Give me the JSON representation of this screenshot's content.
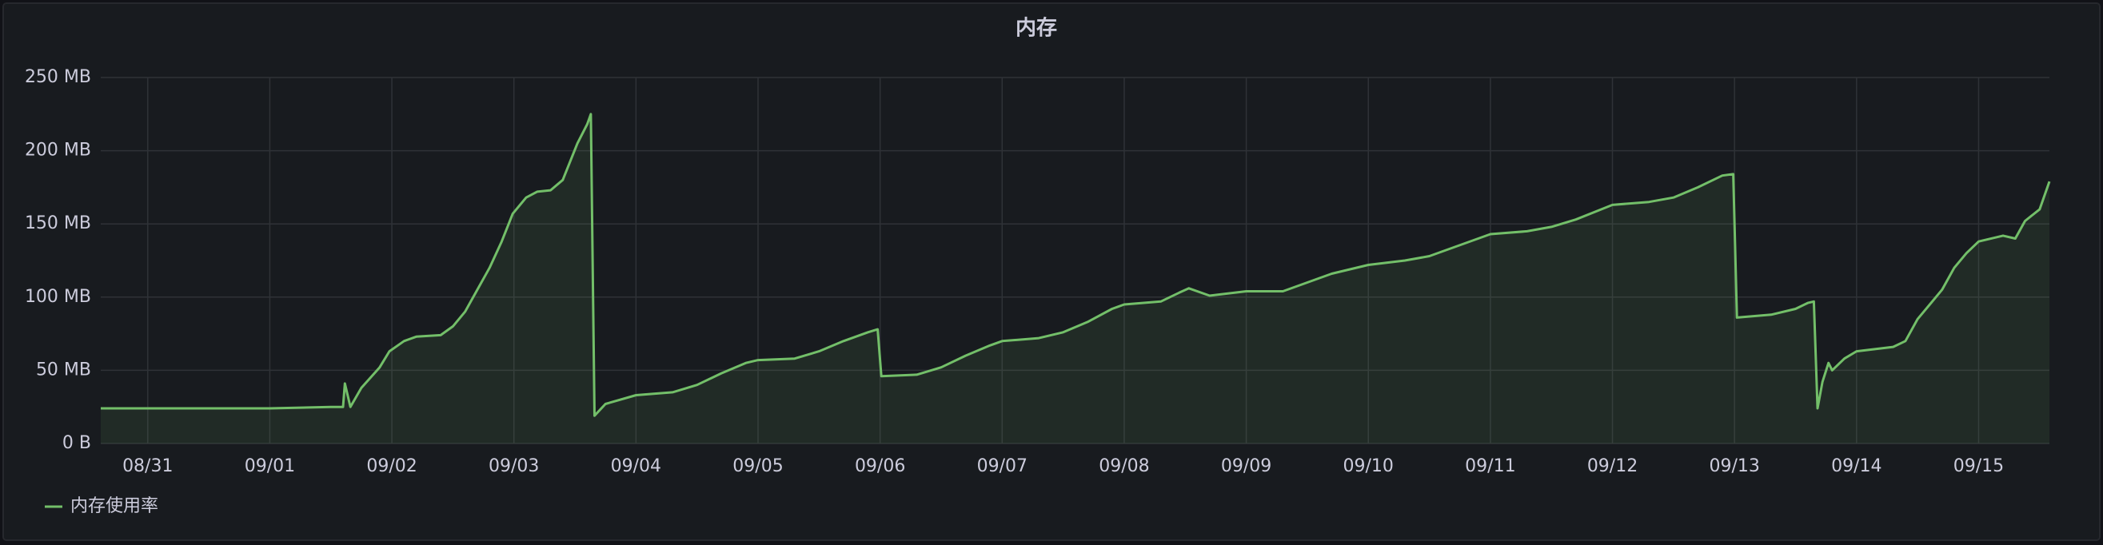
{
  "chart_data": {
    "type": "line",
    "title": "内存",
    "x": [
      -0.385,
      0,
      0.5,
      1,
      1.5,
      1.6,
      1.615,
      1.66,
      1.75,
      1.9,
      1.98,
      2.1,
      2.2,
      2.4,
      2.5,
      2.6,
      2.7,
      2.8,
      2.9,
      2.99,
      3.1,
      3.19,
      3.3,
      3.4,
      3.52,
      3.6,
      3.63,
      3.66,
      3.75,
      4,
      4.3,
      4.5,
      4.7,
      4.9,
      5,
      5.3,
      5.5,
      5.7,
      5.9,
      5.98,
      6.01,
      6.3,
      6.5,
      6.7,
      6.9,
      7,
      7.3,
      7.5,
      7.7,
      7.9,
      8,
      8.3,
      8.45,
      8.53,
      8.7,
      9,
      9.3,
      9.5,
      9.7,
      10,
      10.3,
      10.5,
      10.7,
      11,
      11.3,
      11.5,
      11.7,
      12,
      12.3,
      12.5,
      12.7,
      12.9,
      12.99,
      13.02,
      13.3,
      13.5,
      13.6,
      13.65,
      13.68,
      13.72,
      13.77,
      13.8,
      13.9,
      14,
      14.3,
      14.4,
      14.5,
      14.6,
      14.7,
      14.8,
      14.9,
      15,
      15.2,
      15.3,
      15.38,
      15.5,
      15.58
    ],
    "series": [
      {
        "name": "内存使用率",
        "color": "#73bf69",
        "values": [
          24,
          24,
          24,
          24,
          25,
          25,
          41,
          25,
          38,
          52,
          63,
          70,
          73,
          74,
          80,
          90,
          105,
          120,
          138,
          157,
          168,
          172,
          173,
          180,
          205,
          218,
          225,
          19,
          27,
          33,
          35,
          40,
          48,
          55,
          57,
          58,
          63,
          70,
          76,
          78,
          46,
          47,
          52,
          60,
          67,
          70,
          72,
          76,
          83,
          92,
          95,
          97,
          103,
          106,
          101,
          104,
          104,
          110,
          116,
          122,
          125,
          128,
          134,
          143,
          145,
          148,
          153,
          163,
          165,
          168,
          175,
          183,
          184,
          86,
          88,
          92,
          96,
          97,
          24,
          42,
          55,
          50,
          58,
          63,
          66,
          70,
          85,
          95,
          105,
          120,
          130,
          138,
          142,
          140,
          152,
          160,
          179
        ]
      }
    ],
    "xlim": [
      -0.385,
      15.58
    ],
    "xticks": [
      {
        "value": 0,
        "label": "08/31"
      },
      {
        "value": 1,
        "label": "09/01"
      },
      {
        "value": 2,
        "label": "09/02"
      },
      {
        "value": 3,
        "label": "09/03"
      },
      {
        "value": 4,
        "label": "09/04"
      },
      {
        "value": 5,
        "label": "09/05"
      },
      {
        "value": 6,
        "label": "09/06"
      },
      {
        "value": 7,
        "label": "09/07"
      },
      {
        "value": 8,
        "label": "09/08"
      },
      {
        "value": 9,
        "label": "09/09"
      },
      {
        "value": 10,
        "label": "09/10"
      },
      {
        "value": 11,
        "label": "09/11"
      },
      {
        "value": 12,
        "label": "09/12"
      },
      {
        "value": 13,
        "label": "09/13"
      },
      {
        "value": 14,
        "label": "09/14"
      },
      {
        "value": 15,
        "label": "09/15"
      }
    ],
    "ylim": [
      0,
      250
    ],
    "yticks": [
      {
        "value": 0,
        "label": "0 B"
      },
      {
        "value": 50,
        "label": "50 MB"
      },
      {
        "value": 100,
        "label": "100 MB"
      },
      {
        "value": 150,
        "label": "150 MB"
      },
      {
        "value": 200,
        "label": "200 MB"
      },
      {
        "value": 250,
        "label": "250 MB"
      }
    ],
    "grid": true,
    "legend": "bottom-left"
  }
}
